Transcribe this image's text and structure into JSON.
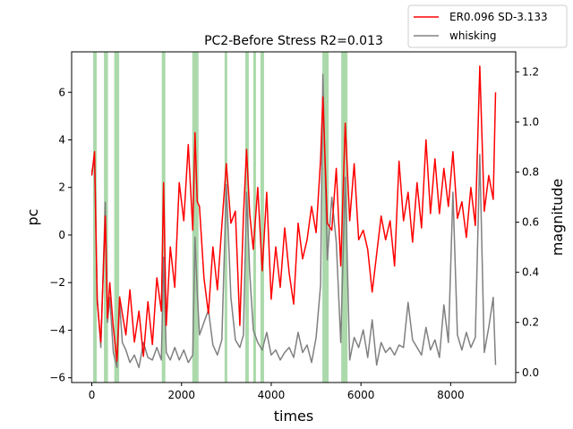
{
  "chart_data": {
    "type": "line",
    "title": "PC2-Before Stress R2=0.013",
    "xlabel": "times",
    "ylabel": "pc",
    "y2label": "magnitude",
    "xlim": [
      -450,
      9450
    ],
    "ylim": [
      -6.2,
      7.7
    ],
    "y2lim": [
      -0.04,
      1.28
    ],
    "x_ticks": [
      0,
      2000,
      4000,
      6000,
      8000
    ],
    "y_ticks": [
      -6,
      -4,
      -2,
      0,
      2,
      4,
      6
    ],
    "y2_ticks": [
      0.0,
      0.2,
      0.4,
      0.6,
      0.8,
      1.0,
      1.2
    ],
    "grid": false,
    "legend_position": "top-right",
    "shaded_intervals": [
      [
        30,
        110
      ],
      [
        270,
        360
      ],
      [
        500,
        610
      ],
      [
        1560,
        1640
      ],
      [
        2240,
        2380
      ],
      [
        2960,
        3020
      ],
      [
        3420,
        3500
      ],
      [
        3600,
        3660
      ],
      [
        3760,
        3840
      ],
      [
        5140,
        5280
      ],
      [
        5560,
        5700
      ]
    ],
    "shade_color": "#2ca02c",
    "series": [
      {
        "name": "ER0.096 SD-3.133",
        "color": "#ff0000",
        "axis": "left",
        "x": [
          0,
          60,
          120,
          200,
          300,
          350,
          400,
          480,
          560,
          620,
          680,
          760,
          850,
          950,
          1050,
          1150,
          1250,
          1350,
          1450,
          1550,
          1600,
          1660,
          1750,
          1850,
          1950,
          2050,
          2150,
          2250,
          2300,
          2350,
          2400,
          2500,
          2600,
          2700,
          2800,
          2900,
          3000,
          3100,
          3200,
          3300,
          3380,
          3450,
          3520,
          3600,
          3700,
          3800,
          3900,
          4000,
          4100,
          4200,
          4300,
          4400,
          4500,
          4600,
          4700,
          4800,
          4900,
          5000,
          5100,
          5150,
          5250,
          5350,
          5450,
          5550,
          5650,
          5750,
          5850,
          5950,
          6050,
          6150,
          6250,
          6350,
          6450,
          6550,
          6650,
          6750,
          6850,
          6950,
          7050,
          7150,
          7250,
          7350,
          7450,
          7550,
          7650,
          7750,
          7850,
          7950,
          8050,
          8150,
          8250,
          8350,
          8450,
          8550,
          8650,
          8750,
          8850,
          8950,
          9000
        ],
        "values": [
          2.5,
          3.5,
          -2.8,
          -4.5,
          0.8,
          -3.5,
          -2.0,
          -3.9,
          -5.3,
          -2.6,
          -3.3,
          -4.2,
          -2.3,
          -4.5,
          -3.2,
          -5.1,
          -2.8,
          -4.6,
          -1.8,
          -3.2,
          2.2,
          -3.8,
          -0.5,
          -2.2,
          2.2,
          0.6,
          3.8,
          0.2,
          4.3,
          1.4,
          1.2,
          -1.8,
          -3.3,
          -0.5,
          -2.3,
          0.4,
          3.0,
          0.5,
          1.0,
          -3.8,
          0.8,
          3.6,
          0.9,
          -0.6,
          2.0,
          -1.5,
          1.8,
          -2.7,
          -0.5,
          -2.2,
          0.3,
          -1.6,
          -2.9,
          0.5,
          -1.0,
          -0.2,
          1.2,
          0.1,
          3.2,
          5.8,
          0.5,
          0.2,
          2.8,
          -1.3,
          4.7,
          0.6,
          3.0,
          -0.2,
          0.2,
          -0.6,
          -2.4,
          -0.8,
          0.8,
          -0.2,
          0.6,
          -1.3,
          3.1,
          0.6,
          1.8,
          -0.3,
          2.2,
          0.3,
          4.0,
          0.9,
          3.2,
          0.9,
          2.8,
          1.2,
          3.5,
          0.7,
          1.4,
          -0.1,
          2.0,
          0.4,
          7.1,
          1.0,
          2.5,
          1.5,
          6.0
        ]
      },
      {
        "name": "whisking",
        "color": "#808080",
        "axis": "right",
        "x": [
          0,
          60,
          120,
          200,
          300,
          350,
          400,
          480,
          560,
          620,
          680,
          760,
          850,
          950,
          1050,
          1150,
          1250,
          1350,
          1450,
          1550,
          1600,
          1660,
          1750,
          1850,
          1950,
          2050,
          2150,
          2250,
          2300,
          2350,
          2400,
          2500,
          2600,
          2700,
          2800,
          2900,
          3000,
          3100,
          3200,
          3300,
          3380,
          3450,
          3520,
          3600,
          3700,
          3800,
          3900,
          4000,
          4100,
          4200,
          4300,
          4400,
          4500,
          4600,
          4700,
          4800,
          4900,
          5000,
          5100,
          5150,
          5250,
          5350,
          5450,
          5550,
          5650,
          5750,
          5850,
          5950,
          6050,
          6150,
          6250,
          6350,
          6450,
          6550,
          6650,
          6750,
          6850,
          6950,
          7050,
          7150,
          7250,
          7350,
          7450,
          7550,
          7650,
          7750,
          7850,
          7950,
          8050,
          8150,
          8250,
          8350,
          8450,
          8550,
          8650,
          8750,
          8850,
          8950,
          9000
        ],
        "values": [
          0.8,
          0.85,
          0.3,
          0.1,
          0.68,
          0.2,
          0.3,
          0.08,
          0.02,
          0.28,
          0.12,
          0.09,
          0.04,
          0.07,
          0.02,
          0.12,
          0.06,
          0.05,
          0.1,
          0.05,
          0.46,
          0.08,
          0.05,
          0.1,
          0.05,
          0.09,
          0.04,
          0.07,
          0.54,
          0.32,
          0.15,
          0.2,
          0.25,
          0.11,
          0.07,
          0.13,
          0.75,
          0.3,
          0.13,
          0.1,
          0.15,
          0.72,
          0.4,
          0.17,
          0.12,
          0.09,
          0.16,
          0.07,
          0.09,
          0.05,
          0.08,
          0.1,
          0.06,
          0.16,
          0.08,
          0.11,
          0.04,
          0.14,
          0.35,
          1.19,
          0.45,
          0.7,
          0.52,
          0.12,
          0.78,
          0.05,
          0.14,
          0.1,
          0.17,
          0.06,
          0.21,
          0.03,
          0.12,
          0.08,
          0.1,
          0.07,
          0.11,
          0.1,
          0.28,
          0.13,
          0.1,
          0.07,
          0.18,
          0.09,
          0.13,
          0.06,
          0.27,
          0.12,
          0.72,
          0.15,
          0.09,
          0.16,
          0.1,
          0.14,
          0.87,
          0.08,
          0.18,
          0.3,
          0.03
        ]
      }
    ]
  }
}
